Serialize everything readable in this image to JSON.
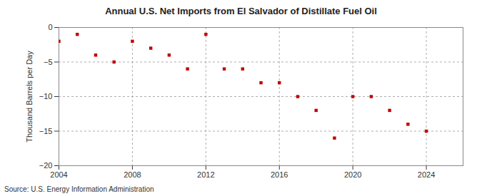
{
  "chart_data": {
    "type": "scatter",
    "title": "Annual U.S. Net Imports from El Salvador of Distillate Fuel Oil",
    "y_label": "Thousand Barrels per Day",
    "source": "Source: U.S. Energy Information Administration",
    "x": [
      2004,
      2005,
      2006,
      2007,
      2008,
      2009,
      2010,
      2011,
      2012,
      2013,
      2014,
      2015,
      2016,
      2017,
      2018,
      2019,
      2020,
      2021,
      2022,
      2023,
      2024
    ],
    "values": [
      -2,
      -1,
      -4,
      -5,
      -2,
      -3,
      -4,
      -6,
      -1,
      -6,
      -6,
      -8,
      -8,
      -10,
      -12,
      -16,
      -10,
      -10,
      -12,
      -14,
      -15
    ],
    "color": "#c00000",
    "marker": "square",
    "xlim": [
      2004,
      2026
    ],
    "xticks": [
      2004,
      2008,
      2012,
      2016,
      2020,
      2024
    ],
    "ylim": [
      -20,
      0
    ],
    "yticks": [
      -20,
      -15,
      -10,
      -5,
      0
    ],
    "grid": true
  }
}
